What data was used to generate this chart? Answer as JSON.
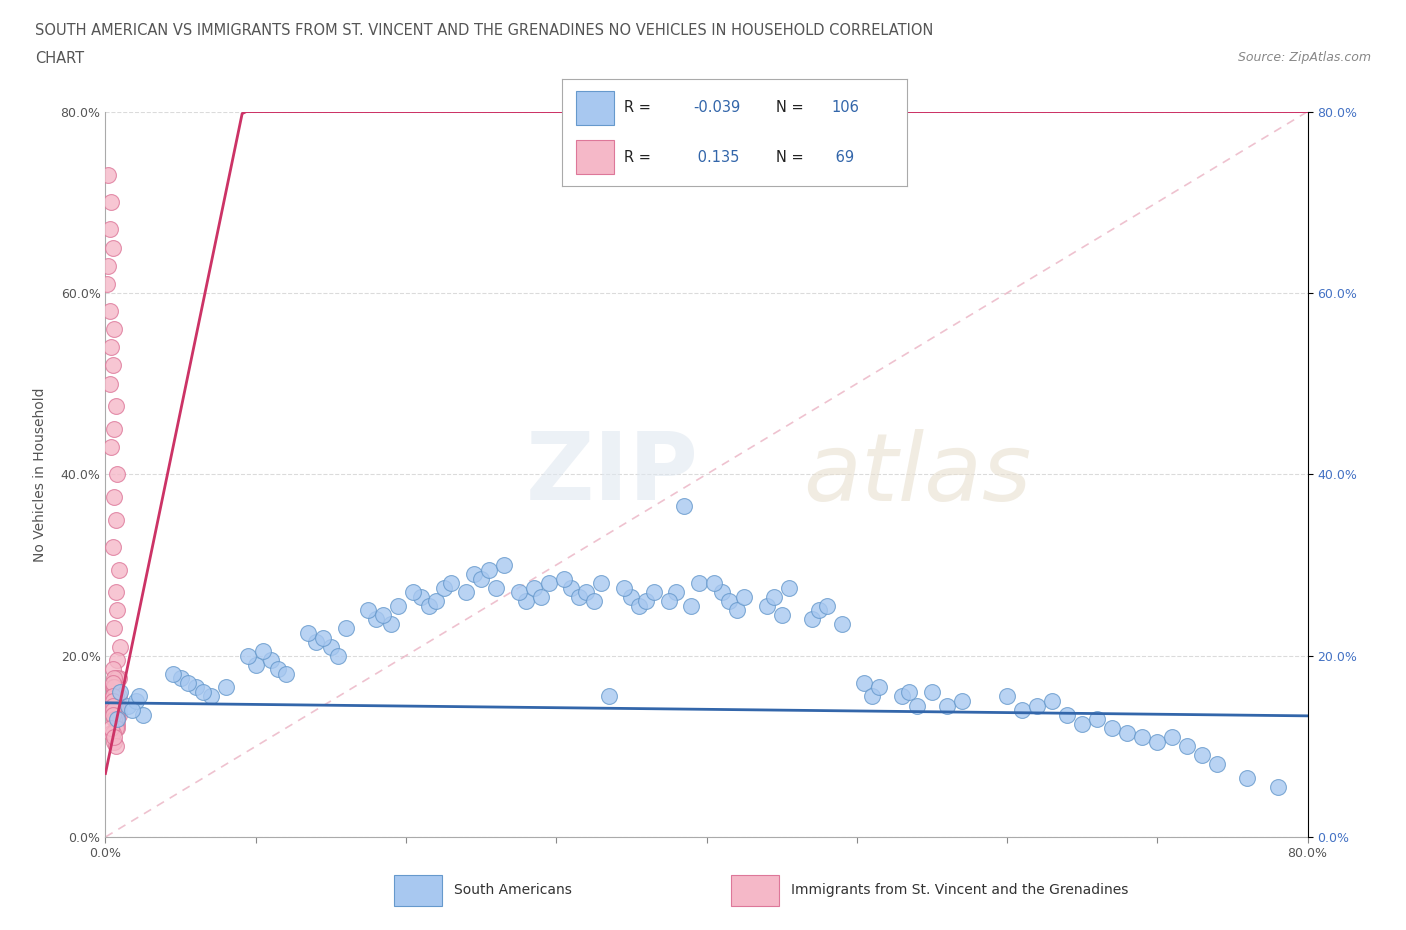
{
  "title_line1": "SOUTH AMERICAN VS IMMIGRANTS FROM ST. VINCENT AND THE GRENADINES NO VEHICLES IN HOUSEHOLD CORRELATION",
  "title_line2": "CHART",
  "source": "Source: ZipAtlas.com",
  "ylabel": "No Vehicles in Household",
  "xmin": 0.0,
  "xmax": 0.8,
  "ymin": 0.0,
  "ymax": 0.8,
  "xticks": [
    0.0,
    0.1,
    0.2,
    0.3,
    0.4,
    0.5,
    0.6,
    0.7,
    0.8
  ],
  "yticks": [
    0.0,
    0.2,
    0.4,
    0.6,
    0.8
  ],
  "xtick_labels": [
    "0.0%",
    "",
    "",
    "",
    "",
    "",
    "",
    "",
    "80.0%"
  ],
  "ytick_labels_left": [
    "0.0%",
    "20.0%",
    "40.0%",
    "60.0%",
    "80.0%"
  ],
  "ytick_labels_right": [
    "0.0%",
    "20.0%",
    "40.0%",
    "60.0%",
    "80.0%"
  ],
  "blue_color": "#A8C8F0",
  "pink_color": "#F5B8C8",
  "blue_edge": "#6699CC",
  "pink_edge": "#DD7799",
  "blue_line_color": "#3366AA",
  "pink_line_color": "#CC3366",
  "pink_dash_color": "#DDAABB",
  "R_blue": -0.039,
  "N_blue": 106,
  "R_pink": 0.135,
  "N_pink": 69,
  "watermark_zip": "ZIP",
  "watermark_atlas": "atlas",
  "legend_label_blue": "South Americans",
  "legend_label_pink": "Immigrants from St. Vincent and the Grenadines",
  "blue_x": [
    0.015,
    0.02,
    0.025,
    0.01,
    0.018,
    0.022,
    0.008,
    0.05,
    0.06,
    0.045,
    0.055,
    0.07,
    0.065,
    0.08,
    0.1,
    0.095,
    0.11,
    0.115,
    0.105,
    0.12,
    0.14,
    0.135,
    0.15,
    0.145,
    0.155,
    0.16,
    0.18,
    0.175,
    0.19,
    0.185,
    0.195,
    0.21,
    0.215,
    0.205,
    0.22,
    0.225,
    0.23,
    0.245,
    0.25,
    0.255,
    0.26,
    0.265,
    0.24,
    0.28,
    0.275,
    0.285,
    0.29,
    0.295,
    0.31,
    0.315,
    0.305,
    0.32,
    0.325,
    0.33,
    0.335,
    0.35,
    0.345,
    0.355,
    0.36,
    0.365,
    0.38,
    0.375,
    0.385,
    0.395,
    0.39,
    0.41,
    0.415,
    0.405,
    0.42,
    0.425,
    0.44,
    0.445,
    0.45,
    0.455,
    0.47,
    0.475,
    0.48,
    0.49,
    0.505,
    0.51,
    0.515,
    0.53,
    0.535,
    0.54,
    0.55,
    0.56,
    0.57,
    0.6,
    0.61,
    0.62,
    0.63,
    0.64,
    0.65,
    0.66,
    0.67,
    0.68,
    0.69,
    0.7,
    0.71,
    0.72,
    0.73,
    0.74,
    0.76,
    0.78
  ],
  "blue_y": [
    0.145,
    0.15,
    0.135,
    0.16,
    0.14,
    0.155,
    0.13,
    0.175,
    0.165,
    0.18,
    0.17,
    0.155,
    0.16,
    0.165,
    0.19,
    0.2,
    0.195,
    0.185,
    0.205,
    0.18,
    0.215,
    0.225,
    0.21,
    0.22,
    0.2,
    0.23,
    0.24,
    0.25,
    0.235,
    0.245,
    0.255,
    0.265,
    0.255,
    0.27,
    0.26,
    0.275,
    0.28,
    0.29,
    0.285,
    0.295,
    0.275,
    0.3,
    0.27,
    0.26,
    0.27,
    0.275,
    0.265,
    0.28,
    0.275,
    0.265,
    0.285,
    0.27,
    0.26,
    0.28,
    0.155,
    0.265,
    0.275,
    0.255,
    0.26,
    0.27,
    0.27,
    0.26,
    0.365,
    0.28,
    0.255,
    0.27,
    0.26,
    0.28,
    0.25,
    0.265,
    0.255,
    0.265,
    0.245,
    0.275,
    0.24,
    0.25,
    0.255,
    0.235,
    0.17,
    0.155,
    0.165,
    0.155,
    0.16,
    0.145,
    0.16,
    0.145,
    0.15,
    0.155,
    0.14,
    0.145,
    0.15,
    0.135,
    0.125,
    0.13,
    0.12,
    0.115,
    0.11,
    0.105,
    0.11,
    0.1,
    0.09,
    0.08,
    0.065,
    0.055
  ],
  "pink_x": [
    0.002,
    0.004,
    0.003,
    0.005,
    0.002,
    0.001,
    0.003,
    0.006,
    0.004,
    0.005,
    0.003,
    0.007,
    0.006,
    0.004,
    0.008,
    0.006,
    0.007,
    0.005,
    0.009,
    0.007,
    0.008,
    0.006,
    0.01,
    0.008,
    0.009,
    0.007,
    0.005,
    0.008,
    0.006,
    0.009,
    0.007,
    0.005,
    0.006,
    0.008,
    0.006,
    0.007,
    0.008,
    0.005,
    0.009,
    0.007,
    0.006,
    0.008,
    0.005,
    0.009,
    0.006,
    0.007,
    0.008,
    0.005,
    0.006,
    0.007,
    0.005,
    0.008,
    0.006,
    0.007,
    0.005,
    0.008,
    0.006,
    0.007,
    0.005,
    0.008,
    0.006,
    0.007,
    0.005,
    0.004,
    0.006,
    0.005,
    0.007,
    0.004,
    0.006
  ],
  "pink_y": [
    0.73,
    0.7,
    0.67,
    0.65,
    0.63,
    0.61,
    0.58,
    0.56,
    0.54,
    0.52,
    0.5,
    0.475,
    0.45,
    0.43,
    0.4,
    0.375,
    0.35,
    0.32,
    0.295,
    0.27,
    0.25,
    0.23,
    0.21,
    0.195,
    0.175,
    0.165,
    0.185,
    0.175,
    0.16,
    0.155,
    0.165,
    0.155,
    0.175,
    0.145,
    0.16,
    0.15,
    0.145,
    0.165,
    0.14,
    0.155,
    0.165,
    0.145,
    0.17,
    0.135,
    0.15,
    0.14,
    0.135,
    0.155,
    0.145,
    0.14,
    0.15,
    0.13,
    0.14,
    0.135,
    0.145,
    0.125,
    0.135,
    0.13,
    0.14,
    0.12,
    0.13,
    0.12,
    0.135,
    0.115,
    0.105,
    0.115,
    0.1,
    0.12,
    0.11
  ]
}
